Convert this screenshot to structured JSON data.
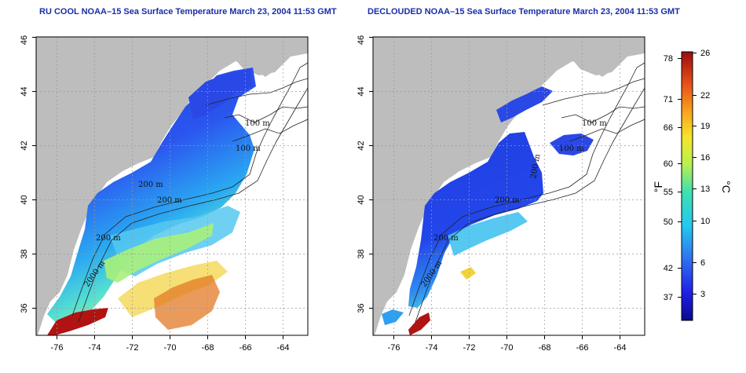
{
  "titles": {
    "left": "RU COOL NOAA–15 Sea Surface Temperature March 23, 2004 11:53 GMT",
    "right": "DECLOUDED NOAA–15 Sea Surface Temperature March 23, 2004 11:53 GMT"
  },
  "axes": {
    "x_ticks": [
      "-76",
      "-74",
      "-72",
      "-70",
      "-68",
      "-66",
      "-64"
    ],
    "y_ticks": [
      "36",
      "38",
      "40",
      "42",
      "44",
      "46"
    ]
  },
  "contour_labels": {
    "left": [
      "100 m",
      "100 m",
      "200 m",
      "200 m",
      "200 m",
      "2000 m"
    ],
    "right": [
      "100 m",
      "100 m",
      "200 m",
      "200 m",
      "200 m",
      "2000 m"
    ]
  },
  "colorbar": {
    "fahrenheit_ticks": [
      "78",
      "71",
      "66",
      "60",
      "55",
      "50",
      "42",
      "37"
    ],
    "celsius_ticks": [
      "26",
      "22",
      "19",
      "16",
      "13",
      "10",
      "6",
      "3"
    ],
    "fahrenheit_unit": "°F",
    "celsius_unit": "°C"
  },
  "colors": {
    "land": "#bdbdbd",
    "title": "#1a2ea8",
    "grid": "#9a9a9a"
  }
}
